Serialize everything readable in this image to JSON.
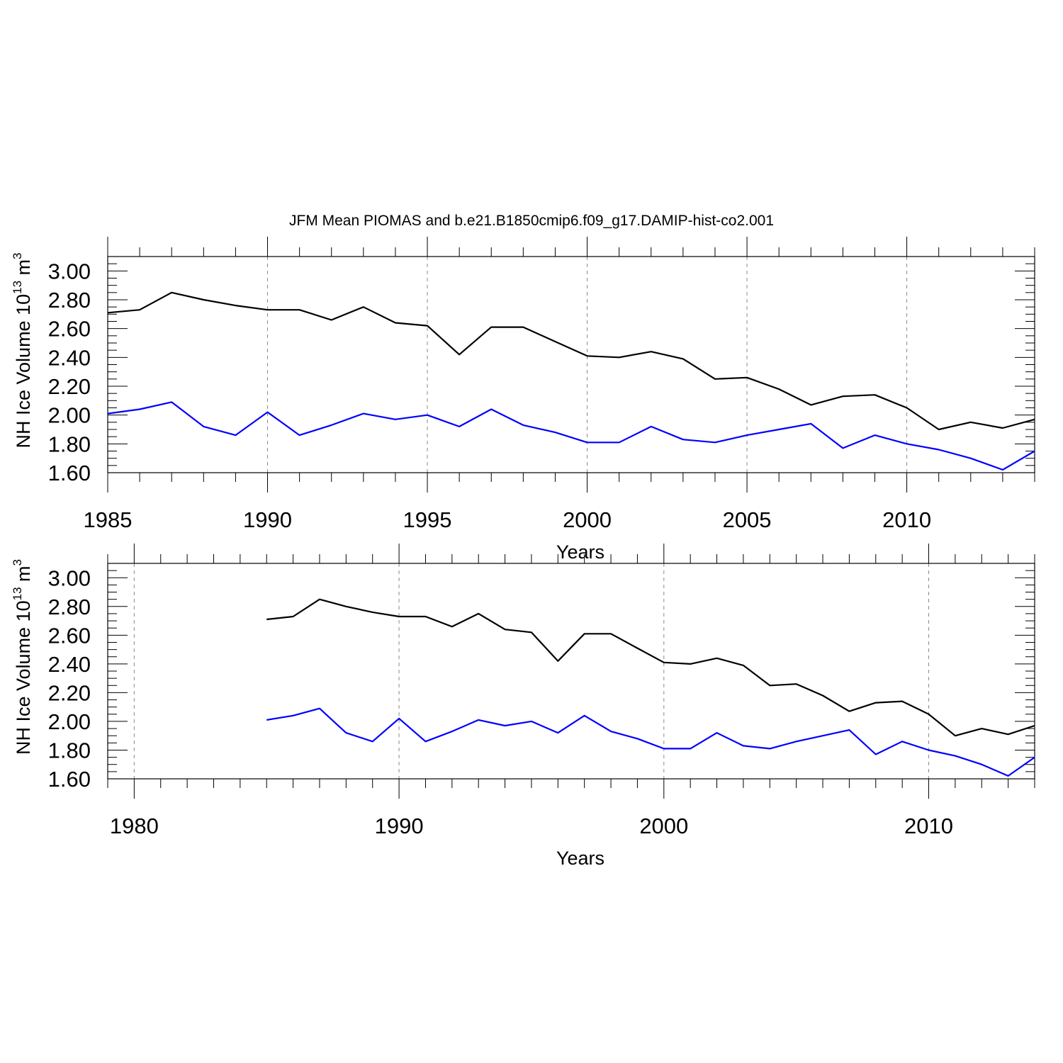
{
  "title": "JFM Mean PIOMAS and b.e21.B1850cmip6.f09_g17.DAMIP-hist-co2.001",
  "chart_data": [
    {
      "type": "line",
      "xlabel": "Years",
      "ylabel": {
        "base": "NH Ice Volume 10",
        "exponent": "13",
        "unit": " m",
        "unit_exponent": "3"
      },
      "xlim": [
        1985,
        2014
      ],
      "ylim": [
        1.6,
        3.1
      ],
      "x_ticks": [
        1985,
        1990,
        1995,
        2000,
        2005,
        2010
      ],
      "x_tick_labels": [
        "1985",
        "1990",
        "1995",
        "2000",
        "2005",
        "2010"
      ],
      "y_ticks": [
        1.6,
        1.8,
        2.0,
        2.2,
        2.4,
        2.6,
        2.8,
        3.0
      ],
      "y_tick_labels": [
        "1.60",
        "1.80",
        "2.00",
        "2.20",
        "2.40",
        "2.60",
        "2.80",
        "3.00"
      ],
      "vertical_grid": "dashed at major x ticks",
      "x": [
        1985,
        1986,
        1987,
        1988,
        1989,
        1990,
        1991,
        1992,
        1993,
        1994,
        1995,
        1996,
        1997,
        1998,
        1999,
        2000,
        2001,
        2002,
        2003,
        2004,
        2005,
        2006,
        2007,
        2008,
        2009,
        2010,
        2011,
        2012,
        2013,
        2014
      ],
      "series": [
        {
          "name": "PIOMAS",
          "color": "#000000",
          "values": [
            2.71,
            2.73,
            2.85,
            2.8,
            2.76,
            2.73,
            2.73,
            2.66,
            2.75,
            2.64,
            2.62,
            2.42,
            2.61,
            2.61,
            2.51,
            2.41,
            2.4,
            2.44,
            2.39,
            2.25,
            2.26,
            2.18,
            2.07,
            2.13,
            2.14,
            2.05,
            1.9,
            1.95,
            1.91,
            1.97
          ]
        },
        {
          "name": "b.e21.B1850cmip6.f09_g17.DAMIP-hist-co2.001",
          "color": "#0000ff",
          "values": [
            2.01,
            2.04,
            2.09,
            1.92,
            1.86,
            2.02,
            1.86,
            1.93,
            2.01,
            1.97,
            2.0,
            1.92,
            2.04,
            1.93,
            1.88,
            1.81,
            1.81,
            1.92,
            1.83,
            1.81,
            1.86,
            1.9,
            1.94,
            1.77,
            1.86,
            1.8,
            1.76,
            1.7,
            1.62,
            1.75
          ]
        }
      ]
    },
    {
      "type": "line",
      "xlabel": "Years",
      "ylabel": {
        "base": "NH Ice Volume 10",
        "exponent": "13",
        "unit": " m",
        "unit_exponent": "3"
      },
      "xlim": [
        1979,
        2014
      ],
      "ylim": [
        1.6,
        3.1
      ],
      "x_ticks": [
        1980,
        1990,
        2000,
        2010
      ],
      "x_tick_labels": [
        "1980",
        "1990",
        "2000",
        "2010"
      ],
      "y_ticks": [
        1.6,
        1.8,
        2.0,
        2.2,
        2.4,
        2.6,
        2.8,
        3.0
      ],
      "y_tick_labels": [
        "1.60",
        "1.80",
        "2.00",
        "2.20",
        "2.40",
        "2.60",
        "2.80",
        "3.00"
      ],
      "vertical_grid": "dashed at major x ticks",
      "x": [
        1985,
        1986,
        1987,
        1988,
        1989,
        1990,
        1991,
        1992,
        1993,
        1994,
        1995,
        1996,
        1997,
        1998,
        1999,
        2000,
        2001,
        2002,
        2003,
        2004,
        2005,
        2006,
        2007,
        2008,
        2009,
        2010,
        2011,
        2012,
        2013,
        2014
      ],
      "series": [
        {
          "name": "PIOMAS",
          "color": "#000000",
          "values": [
            2.71,
            2.73,
            2.85,
            2.8,
            2.76,
            2.73,
            2.73,
            2.66,
            2.75,
            2.64,
            2.62,
            2.42,
            2.61,
            2.61,
            2.51,
            2.41,
            2.4,
            2.44,
            2.39,
            2.25,
            2.26,
            2.18,
            2.07,
            2.13,
            2.14,
            2.05,
            1.9,
            1.95,
            1.91,
            1.97
          ]
        },
        {
          "name": "b.e21.B1850cmip6.f09_g17.DAMIP-hist-co2.001",
          "color": "#0000ff",
          "values": [
            2.01,
            2.04,
            2.09,
            1.92,
            1.86,
            2.02,
            1.86,
            1.93,
            2.01,
            1.97,
            2.0,
            1.92,
            2.04,
            1.93,
            1.88,
            1.81,
            1.81,
            1.92,
            1.83,
            1.81,
            1.86,
            1.9,
            1.94,
            1.77,
            1.86,
            1.8,
            1.76,
            1.7,
            1.62,
            1.75
          ]
        }
      ]
    }
  ]
}
